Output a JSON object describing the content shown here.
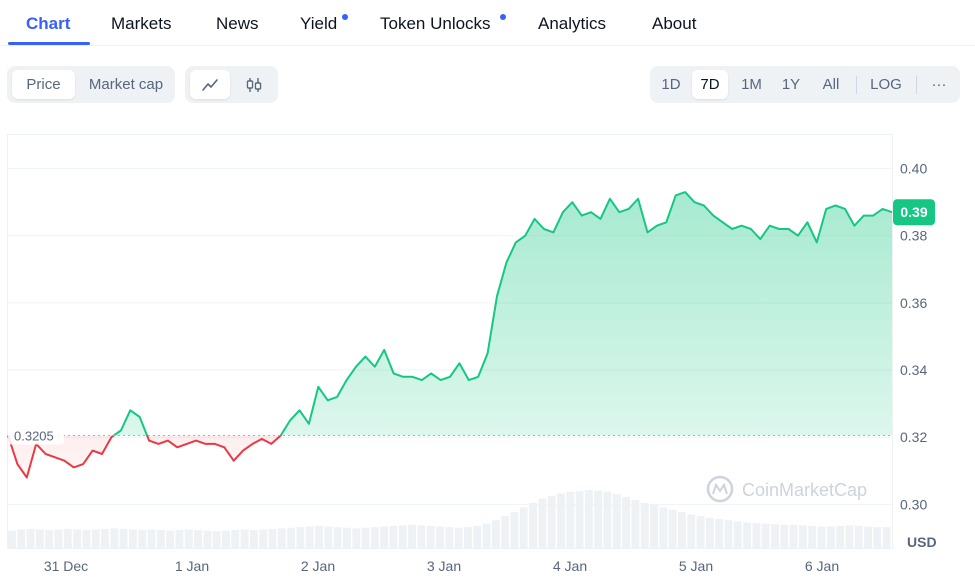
{
  "tabs": [
    {
      "label": "Chart",
      "active": true,
      "dot": false
    },
    {
      "label": "Markets",
      "active": false,
      "dot": false
    },
    {
      "label": "News",
      "active": false,
      "dot": false
    },
    {
      "label": "Yield",
      "active": false,
      "dot": true
    },
    {
      "label": "Token Unlocks",
      "active": false,
      "dot": true
    },
    {
      "label": "Analytics",
      "active": false,
      "dot": false
    },
    {
      "label": "About",
      "active": false,
      "dot": false
    }
  ],
  "view_toggle": {
    "price": "Price",
    "market_cap": "Market cap",
    "selected": "Price"
  },
  "chart_style": {
    "line_icon": "line-chart-icon",
    "candle_icon": "candlestick-icon",
    "selected": "line"
  },
  "ranges": {
    "items": [
      "1D",
      "7D",
      "1M",
      "1Y",
      "All"
    ],
    "selected": "7D",
    "log": "LOG",
    "more": "···"
  },
  "watermark": "CoinMarketCap",
  "currency": "USD",
  "colors": {
    "accent": "#3861fb",
    "up": "#16c784",
    "down": "#ea3943"
  },
  "chart_data": {
    "type": "line",
    "x_labels": [
      "31 Dec",
      "1 Jan",
      "2 Jan",
      "3 Jan",
      "4 Jan",
      "5 Jan",
      "6 Jan"
    ],
    "y_ticks": [
      "0.40",
      "0.38",
      "0.36",
      "0.34",
      "0.32",
      "0.30"
    ],
    "ylim": [
      0.287,
      0.41
    ],
    "baseline": 0.3205,
    "baseline_label": "0.3205",
    "current_price": 0.387,
    "current_label": "0.39",
    "grid": true,
    "series": [
      {
        "values": [
          0.3205,
          0.312,
          0.308,
          0.318,
          0.315,
          0.314,
          0.313,
          0.311,
          0.312,
          0.316,
          0.315,
          0.32,
          0.322,
          0.328,
          0.326,
          0.319,
          0.318,
          0.319,
          0.317,
          0.318,
          0.319,
          0.318,
          0.318,
          0.317,
          0.313,
          0.316,
          0.318,
          0.3195,
          0.318,
          0.3205,
          0.325,
          0.328,
          0.324,
          0.335,
          0.331,
          0.332,
          0.337,
          0.341,
          0.344,
          0.341,
          0.346,
          0.339,
          0.338,
          0.338,
          0.337,
          0.339,
          0.337,
          0.338,
          0.342,
          0.337,
          0.338,
          0.345,
          0.362,
          0.372,
          0.378,
          0.38,
          0.385,
          0.382,
          0.381,
          0.387,
          0.39,
          0.386,
          0.387,
          0.385,
          0.391,
          0.387,
          0.388,
          0.391,
          0.381,
          0.383,
          0.384,
          0.392,
          0.393,
          0.39,
          0.389,
          0.386,
          0.384,
          0.382,
          0.383,
          0.382,
          0.379,
          0.383,
          0.382,
          0.382,
          0.38,
          0.384,
          0.378,
          0.388,
          0.389,
          0.388,
          0.383,
          0.386,
          0.386,
          0.388,
          0.387
        ]
      }
    ],
    "volume": [
      0.3,
      0.32,
      0.33,
      0.32,
      0.31,
      0.32,
      0.33,
      0.32,
      0.31,
      0.32,
      0.33,
      0.34,
      0.33,
      0.32,
      0.31,
      0.32,
      0.31,
      0.3,
      0.31,
      0.32,
      0.31,
      0.3,
      0.29,
      0.3,
      0.31,
      0.32,
      0.31,
      0.32,
      0.33,
      0.34,
      0.35,
      0.36,
      0.37,
      0.38,
      0.37,
      0.36,
      0.35,
      0.34,
      0.35,
      0.36,
      0.37,
      0.38,
      0.39,
      0.4,
      0.39,
      0.38,
      0.37,
      0.36,
      0.35,
      0.36,
      0.38,
      0.42,
      0.48,
      0.55,
      0.62,
      0.7,
      0.78,
      0.85,
      0.9,
      0.94,
      0.97,
      0.98,
      1.0,
      0.99,
      0.97,
      0.93,
      0.88,
      0.83,
      0.78,
      0.74,
      0.7,
      0.66,
      0.62,
      0.58,
      0.55,
      0.52,
      0.5,
      0.48,
      0.46,
      0.44,
      0.43,
      0.42,
      0.41,
      0.4,
      0.4,
      0.39,
      0.38,
      0.37,
      0.37,
      0.38,
      0.39,
      0.38,
      0.37,
      0.36,
      0.36
    ]
  }
}
